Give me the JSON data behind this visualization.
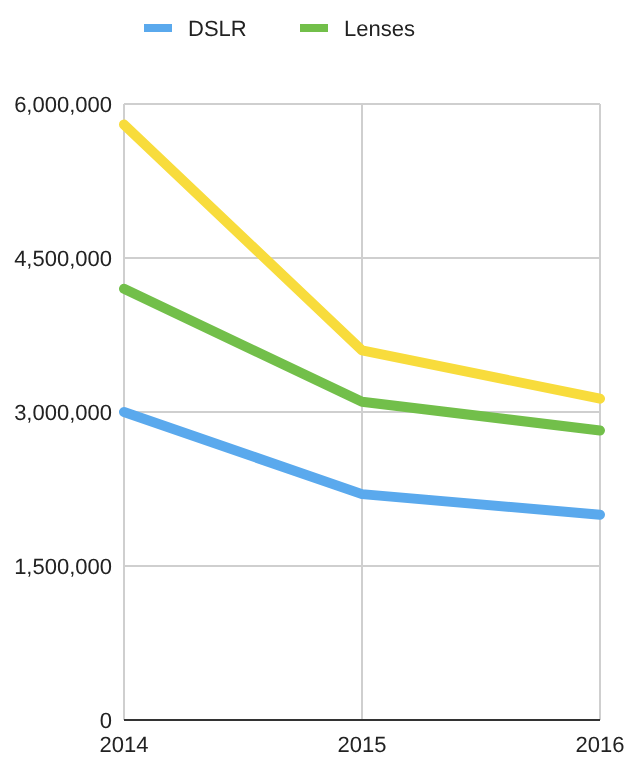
{
  "chart_data": {
    "type": "line",
    "x": [
      2014,
      2015,
      2016
    ],
    "xlim": [
      2014,
      2016
    ],
    "xticks": [
      2014,
      2015,
      2016
    ],
    "ylim": [
      0,
      6000000
    ],
    "yticks": [
      {
        "value": 0,
        "label": "0"
      },
      {
        "value": 1500000,
        "label": "1,500,000"
      },
      {
        "value": 3000000,
        "label": "3,000,000"
      },
      {
        "value": 4500000,
        "label": "4,500,000"
      },
      {
        "value": 6000000,
        "label": "6,000,000"
      }
    ],
    "grid": true,
    "legend": "top",
    "marker": "none",
    "series": [
      {
        "name": "DSLR",
        "color": "#5aa9ed",
        "values": [
          3000000,
          2200000,
          2000000
        ]
      },
      {
        "name": "Lenses",
        "color": "#72bf4a",
        "values": [
          4200000,
          3100000,
          2820000
        ]
      },
      {
        "color": "#f8dc3c",
        "values": [
          5800000,
          3600000,
          3130000
        ]
      }
    ]
  }
}
